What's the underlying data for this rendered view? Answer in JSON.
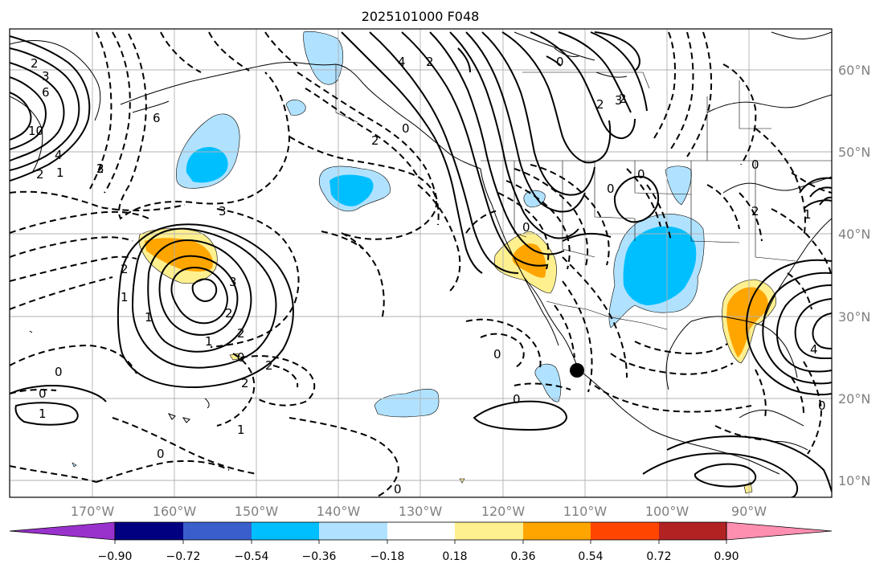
{
  "title": "2025101000 F048",
  "lon_labels": [
    "170°W",
    "160°W",
    "150°W",
    "140°W",
    "130°W",
    "120°W",
    "110°W",
    "100°W",
    "90°W"
  ],
  "lat_labels": [
    "60°N",
    "50°N",
    "40°N",
    "30°N",
    "20°N",
    "10°N"
  ],
  "colorbar": {
    "colors": [
      "#9932cc",
      "#000080",
      "#3a5fcd",
      "#00bfff",
      "#b0e2ff",
      "#ffffff",
      "#fff08f",
      "#ffa500",
      "#ff4500",
      "#b22222",
      "#ff8fb1"
    ],
    "tick_labels": [
      "−0.90",
      "−0.72",
      "−0.54",
      "−0.36",
      "−0.18",
      "0.18",
      "0.36",
      "0.54",
      "0.72",
      "0.90"
    ]
  },
  "contour_labels": [
    "2",
    "3",
    "6",
    "10",
    "4",
    "2",
    "1",
    "6",
    "2",
    "3",
    "2",
    "0",
    "4",
    "3",
    "2",
    "0",
    "0",
    "2",
    "3",
    "2",
    "1",
    "1",
    "3",
    "2",
    "1",
    "2",
    "0",
    "2",
    "2",
    "1",
    "0",
    "0",
    "1",
    "0",
    "0",
    "0",
    "2",
    "2",
    "0",
    "1",
    "0",
    "0",
    "4",
    "0",
    "0"
  ],
  "colors": {
    "shade_light_blue": "#b0e2ff",
    "shade_blue": "#00bfff",
    "shade_yellow": "#fff08f",
    "shade_orange": "#ffa500"
  }
}
